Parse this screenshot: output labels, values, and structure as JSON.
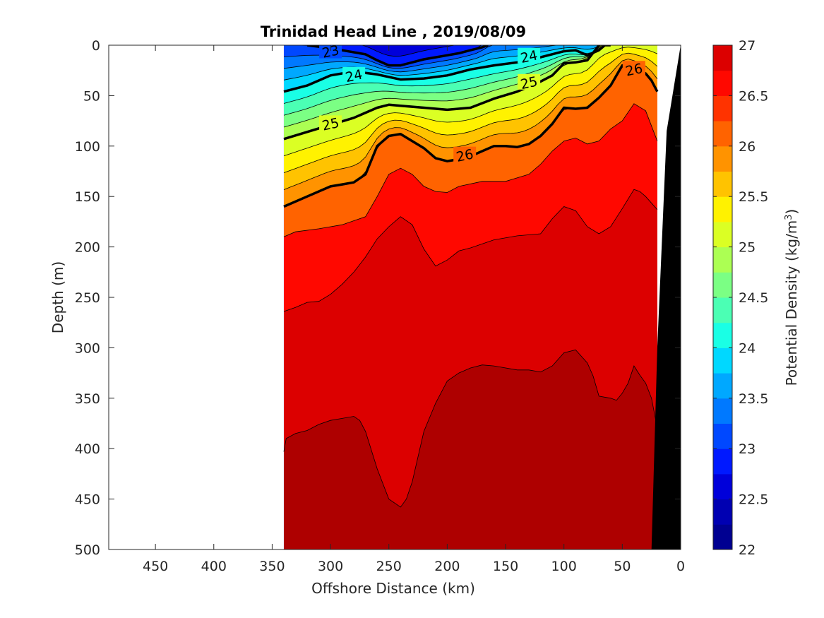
{
  "chart_data": {
    "type": "contour",
    "title": "Trinidad Head Line , 2019/08/09",
    "xlabel": "Offshore Distance (km)",
    "ylabel": "Depth (m)",
    "xlim": [
      490,
      0
    ],
    "ylim": [
      0,
      500
    ],
    "x_direction": "reversed",
    "y_direction": "reversed",
    "xticks": [
      450,
      400,
      350,
      300,
      250,
      200,
      150,
      100,
      50,
      0
    ],
    "yticks": [
      0,
      50,
      100,
      150,
      200,
      250,
      300,
      350,
      400,
      450,
      500
    ],
    "colorbar": {
      "label": "Potential Density (kg/m",
      "label_superscript": "3",
      "label_suffix": ")",
      "range": [
        22,
        27
      ],
      "ticks": [
        "22",
        "22.5",
        "23",
        "23.5",
        "24",
        "24.5",
        "25",
        "25.5",
        "26",
        "26.5",
        "27"
      ],
      "levels": [
        22,
        22.25,
        22.5,
        22.75,
        23,
        23.25,
        23.5,
        23.75,
        24,
        24.25,
        24.5,
        24.75,
        25,
        25.25,
        25.5,
        25.75,
        26,
        26.25,
        26.5,
        26.75,
        27
      ],
      "colors": [
        "#000091",
        "#0000b2",
        "#0000da",
        "#0019ff",
        "#0048ff",
        "#0079ff",
        "#00a8ff",
        "#00d8ff",
        "#1affe5",
        "#4bffb4",
        "#7bff84",
        "#acff53",
        "#dbff24",
        "#fff200",
        "#ffc300",
        "#ff9300",
        "#ff6300",
        "#ff3300",
        "#ff0800",
        "#dc0000",
        "#ae0000"
      ]
    },
    "data_extent_km": [
      340,
      20
    ],
    "bottom_topography": {
      "label": "seafloor",
      "color": "#000000",
      "distance_km": [
        0,
        12,
        20,
        25
      ],
      "depth_m": [
        0,
        85,
        300,
        500
      ]
    },
    "bold_contours": [
      {
        "level": 23,
        "label": "23",
        "distance_km": [
          320,
          300,
          270,
          260,
          250,
          240,
          230,
          220,
          210,
          200,
          190,
          180,
          170,
          165
        ],
        "depth_m": [
          0,
          3,
          9,
          15,
          20,
          20,
          17,
          14,
          12,
          10,
          8,
          5,
          2,
          0
        ]
      },
      {
        "level": 24,
        "label": "24",
        "distance_km": [
          340,
          320,
          300,
          280,
          260,
          240,
          220,
          200,
          180,
          160,
          140,
          120,
          100,
          90,
          80,
          70,
          65,
          60
        ],
        "depth_m": [
          46,
          40,
          30,
          26,
          29,
          34,
          33,
          30,
          24,
          20,
          17,
          12,
          6,
          5,
          10,
          5,
          0,
          0
        ]
      },
      {
        "level": 25,
        "label": "25",
        "distance_km": [
          340,
          320,
          300,
          280,
          260,
          250,
          240,
          220,
          200,
          180,
          160,
          140,
          120,
          110,
          100,
          90,
          80,
          70
        ],
        "depth_m": [
          93,
          86,
          79,
          72,
          62,
          59,
          60,
          62,
          64,
          62,
          53,
          46,
          36,
          30,
          18,
          17,
          15,
          0
        ]
      },
      {
        "level": 26,
        "label": "26",
        "distance_km": [
          340,
          320,
          300,
          290,
          280,
          270,
          260,
          250,
          240,
          230,
          220,
          210,
          200,
          190,
          180,
          160,
          150,
          140,
          130,
          120,
          110,
          100,
          90,
          80,
          70,
          60,
          55,
          50,
          45,
          40,
          30,
          25,
          20
        ],
        "depth_m": [
          160,
          150,
          140,
          138,
          136,
          128,
          100,
          90,
          88,
          95,
          102,
          112,
          115,
          113,
          110,
          100,
          100,
          101,
          98,
          90,
          78,
          62,
          63,
          62,
          52,
          40,
          30,
          20,
          18,
          22,
          28,
          35,
          46
        ]
      }
    ],
    "filled_boundaries": [
      {
        "level": 26.5,
        "distance_km": [
          340,
          330,
          310,
          290,
          270,
          260,
          250,
          240,
          230,
          220,
          210,
          200,
          190,
          170,
          150,
          130,
          120,
          110,
          100,
          90,
          80,
          70,
          60,
          50,
          40,
          30,
          20
        ],
        "depth_m": [
          190,
          185,
          182,
          178,
          170,
          150,
          128,
          122,
          128,
          140,
          145,
          146,
          140,
          135,
          135,
          128,
          118,
          105,
          95,
          92,
          98,
          95,
          83,
          75,
          58,
          65,
          95
        ]
      },
      {
        "level": 26.75,
        "distance_km": [
          340,
          330,
          320,
          310,
          300,
          290,
          280,
          270,
          260,
          250,
          240,
          230,
          220,
          210,
          200,
          190,
          180,
          160,
          140,
          120,
          110,
          100,
          90,
          80,
          70,
          60,
          50,
          40,
          35,
          30,
          20
        ],
        "depth_m": [
          264,
          260,
          255,
          254,
          247,
          237,
          225,
          210,
          192,
          180,
          170,
          178,
          202,
          219,
          213,
          204,
          201,
          193,
          189,
          187,
          172,
          160,
          164,
          180,
          187,
          180,
          162,
          143,
          145,
          150,
          163
        ]
      },
      {
        "level": 27,
        "distance_km": [
          340,
          338,
          330,
          320,
          310,
          300,
          290,
          280,
          275,
          270,
          260,
          250,
          240,
          235,
          230,
          220,
          210,
          200,
          190,
          180,
          170,
          160,
          140,
          130,
          120,
          110,
          100,
          90,
          80,
          75,
          70,
          60,
          55,
          50,
          45,
          40,
          35,
          30,
          25,
          20
        ],
        "depth_m": [
          403,
          390,
          385,
          382,
          376,
          372,
          370,
          368,
          372,
          383,
          420,
          450,
          458,
          450,
          433,
          383,
          355,
          333,
          325,
          320,
          317,
          318,
          322,
          322,
          324,
          318,
          305,
          302,
          315,
          328,
          348,
          350,
          352,
          345,
          335,
          318,
          327,
          335,
          350,
          380
        ]
      }
    ]
  }
}
